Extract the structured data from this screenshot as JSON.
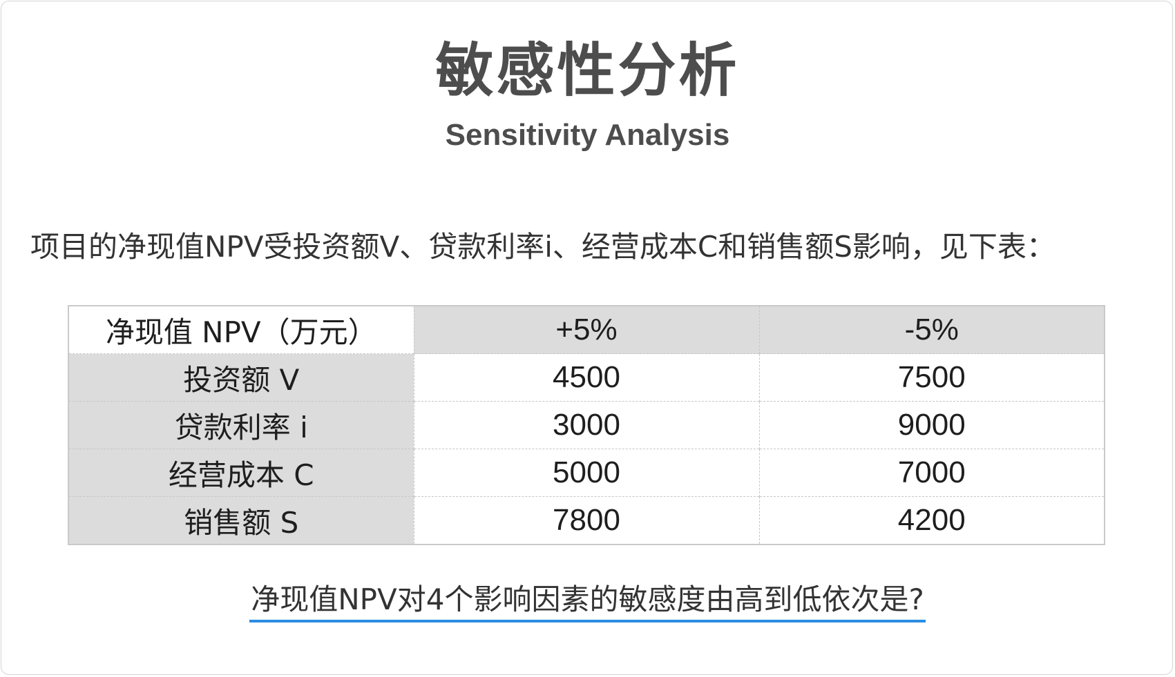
{
  "title": {
    "cn": "敏感性分析",
    "en": "Sensitivity Analysis"
  },
  "intro_text": "项目的净现值NPV受投资额V、贷款利率i、经营成本C和销售额S影响，见下表：",
  "table": {
    "corner_label": "净现值 NPV（万元）",
    "columns": [
      "+5%",
      "-5%"
    ],
    "rows": [
      {
        "label": "投资额 V",
        "values": [
          "4500",
          "7500"
        ]
      },
      {
        "label": "贷款利率 i",
        "values": [
          "3000",
          "9000"
        ]
      },
      {
        "label": "经营成本 C",
        "values": [
          "5000",
          "7000"
        ]
      },
      {
        "label": "销售额 S",
        "values": [
          "7800",
          "4200"
        ]
      }
    ]
  },
  "question": "净现值NPV对4个影响因素的敏感度由高到低依次是?",
  "colors": {
    "header_fill": "#dcdcdc",
    "underline": "#2a8de0",
    "title": "#4d4d4d"
  }
}
